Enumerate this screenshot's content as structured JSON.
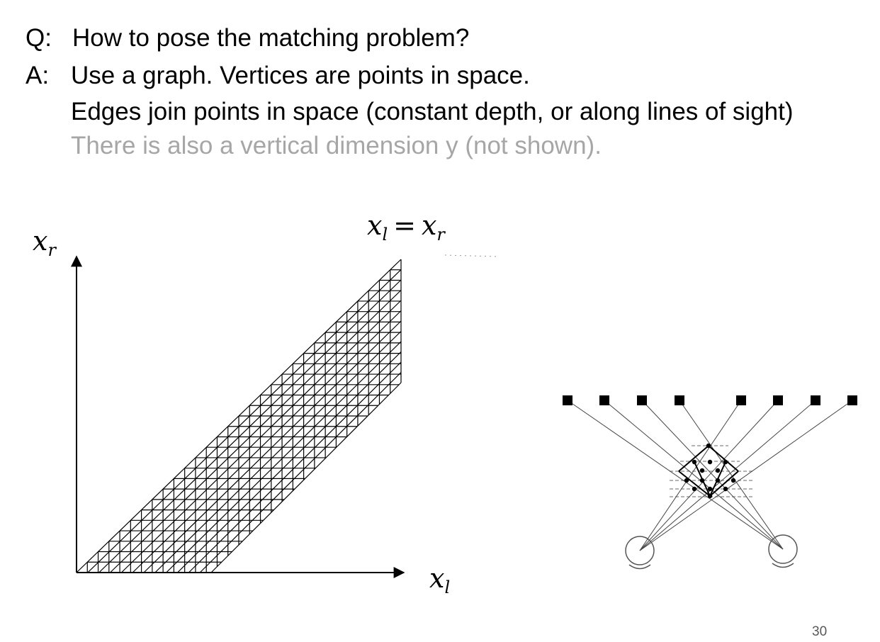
{
  "text": {
    "q_prefix": "Q:",
    "q_line": "How to pose the matching problem?",
    "a_prefix": "A:",
    "a_line1": "Use a graph.  Vertices are points in space.",
    "a_line2": "Edges join points in space (constant depth, or along lines of sight)",
    "a_line3": "There is also a vertical dimension y (not shown)."
  },
  "diagram": {
    "y_axis_var": "x",
    "y_axis_sub": "r",
    "x_axis_var": "x",
    "x_axis_sub": "l",
    "diag_lhs_var": "x",
    "diag_lhs_sub": "l",
    "diag_eq": "=",
    "diag_rhs_var": "x",
    "diag_rhs_sub": "r"
  },
  "page_number": "30",
  "colors": {
    "text": "#000000",
    "gray_text": "#a6a6a6",
    "dashed": "#888888"
  }
}
